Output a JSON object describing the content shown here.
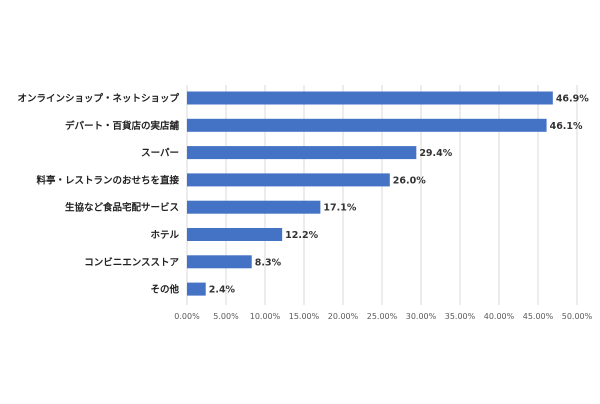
{
  "chart_data": {
    "type": "bar",
    "orientation": "horizontal",
    "categories": [
      "オンラインショップ・ネットショップ",
      "デパート・百貨店の実店舗",
      "スーパー",
      "料亭・レストランのおせちを直接",
      "生協など食品宅配サービス",
      "ホテル",
      "コンビニエンスストア",
      "その他"
    ],
    "values": [
      46.9,
      46.1,
      29.4,
      26.0,
      17.1,
      12.2,
      8.3,
      2.4
    ],
    "value_labels": [
      "46.9%",
      "46.1%",
      "29.4%",
      "26.0%",
      "17.1%",
      "12.2%",
      "8.3%",
      "2.4%"
    ],
    "xlim": [
      0,
      50
    ],
    "x_ticks": [
      0,
      5,
      10,
      15,
      20,
      25,
      30,
      35,
      40,
      45,
      50
    ],
    "x_tick_labels": [
      "0.00%",
      "5.00%",
      "10.00%",
      "15.00%",
      "20.00%",
      "25.00%",
      "30.00%",
      "35.00%",
      "40.00%",
      "45.00%",
      "50.00%"
    ],
    "title": "",
    "xlabel": "",
    "ylabel": "",
    "grid": "vertical",
    "legend": "none",
    "bar_color": "#4472C4",
    "grid_color": "#D9D9D9"
  }
}
